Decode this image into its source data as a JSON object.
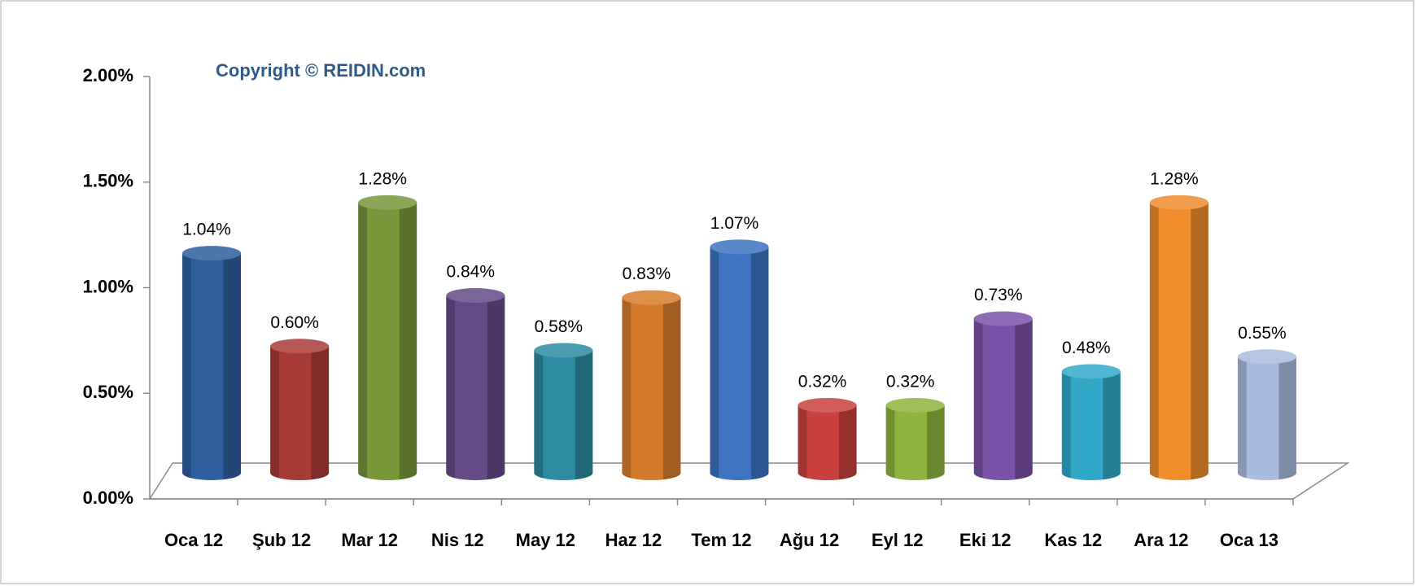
{
  "chart_data": {
    "type": "bar",
    "annotation": "Copyright © REIDIN.com",
    "categories": [
      "Oca 12",
      "Şub 12",
      "Mar 12",
      "Nis 12",
      "May 12",
      "Haz 12",
      "Tem 12",
      "Ağu 12",
      "Eyl 12",
      "Eki 12",
      "Kas 12",
      "Ara 12",
      "Oca 13"
    ],
    "values": [
      1.04,
      0.6,
      1.28,
      0.84,
      0.58,
      0.83,
      1.07,
      0.32,
      0.32,
      0.73,
      0.48,
      1.28,
      0.55
    ],
    "value_labels": [
      "1.04%",
      "0.60%",
      "1.28%",
      "0.84%",
      "0.58%",
      "0.83%",
      "1.07%",
      "0.32%",
      "0.32%",
      "0.73%",
      "0.48%",
      "1.28%",
      "0.55%"
    ],
    "colors": [
      "#2e5f9e",
      "#a83a37",
      "#77973a",
      "#644a86",
      "#2c8ba0",
      "#d67b2c",
      "#3d74c0",
      "#c9413e",
      "#8db43e",
      "#7a52a8",
      "#31a8c8",
      "#f08c2c",
      "#a9bcde"
    ],
    "ylim": [
      0,
      2
    ],
    "yticks": [
      {
        "value": 0,
        "label": "0.00%"
      },
      {
        "value": 0.5,
        "label": "0.50%"
      },
      {
        "value": 1,
        "label": "1.00%"
      },
      {
        "value": 1.5,
        "label": "1.50%"
      },
      {
        "value": 2,
        "label": "2.00%"
      }
    ]
  }
}
